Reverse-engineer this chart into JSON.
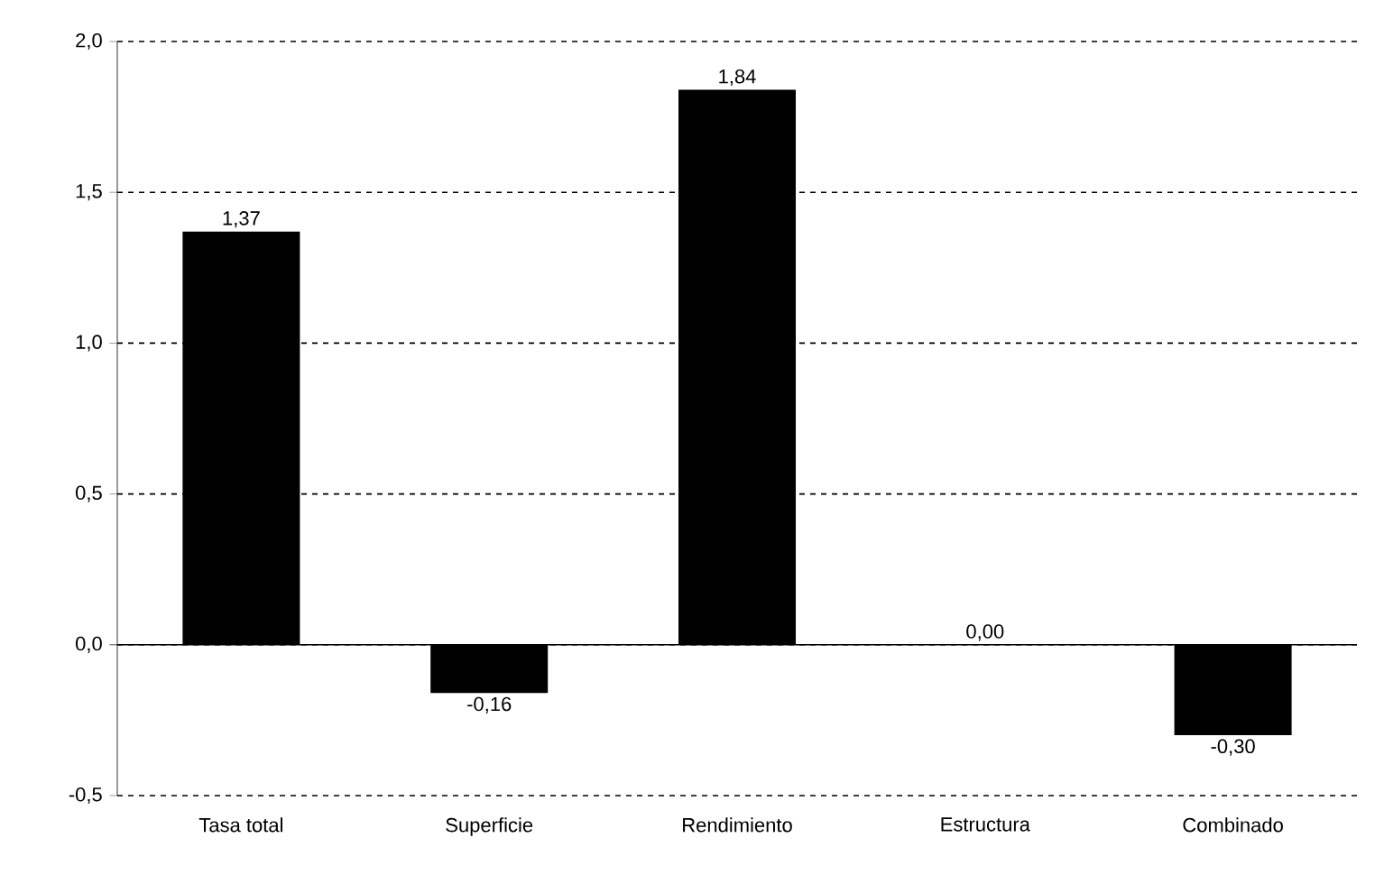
{
  "chart_data": {
    "type": "bar",
    "categories": [
      "Tasa total",
      "Superficie",
      "Rendimiento",
      "Estructura",
      "Combinado"
    ],
    "values": [
      1.37,
      -0.16,
      1.84,
      0.0,
      -0.3
    ],
    "value_labels": [
      "1,37",
      "-0,16",
      "1,84",
      "0,00",
      "-0,30"
    ],
    "color": "#000000",
    "ylim": [
      -0.5,
      2.0
    ],
    "yticks": [
      {
        "value": -0.5,
        "label": "-0,5"
      },
      {
        "value": 0,
        "label": "0,0"
      },
      {
        "value": 0.5,
        "label": "0,5"
      },
      {
        "value": 1.0,
        "label": "1,0"
      },
      {
        "value": 1.5,
        "label": "1,5"
      },
      {
        "value": 2.0,
        "label": "2,0"
      }
    ],
    "grid": "y"
  }
}
